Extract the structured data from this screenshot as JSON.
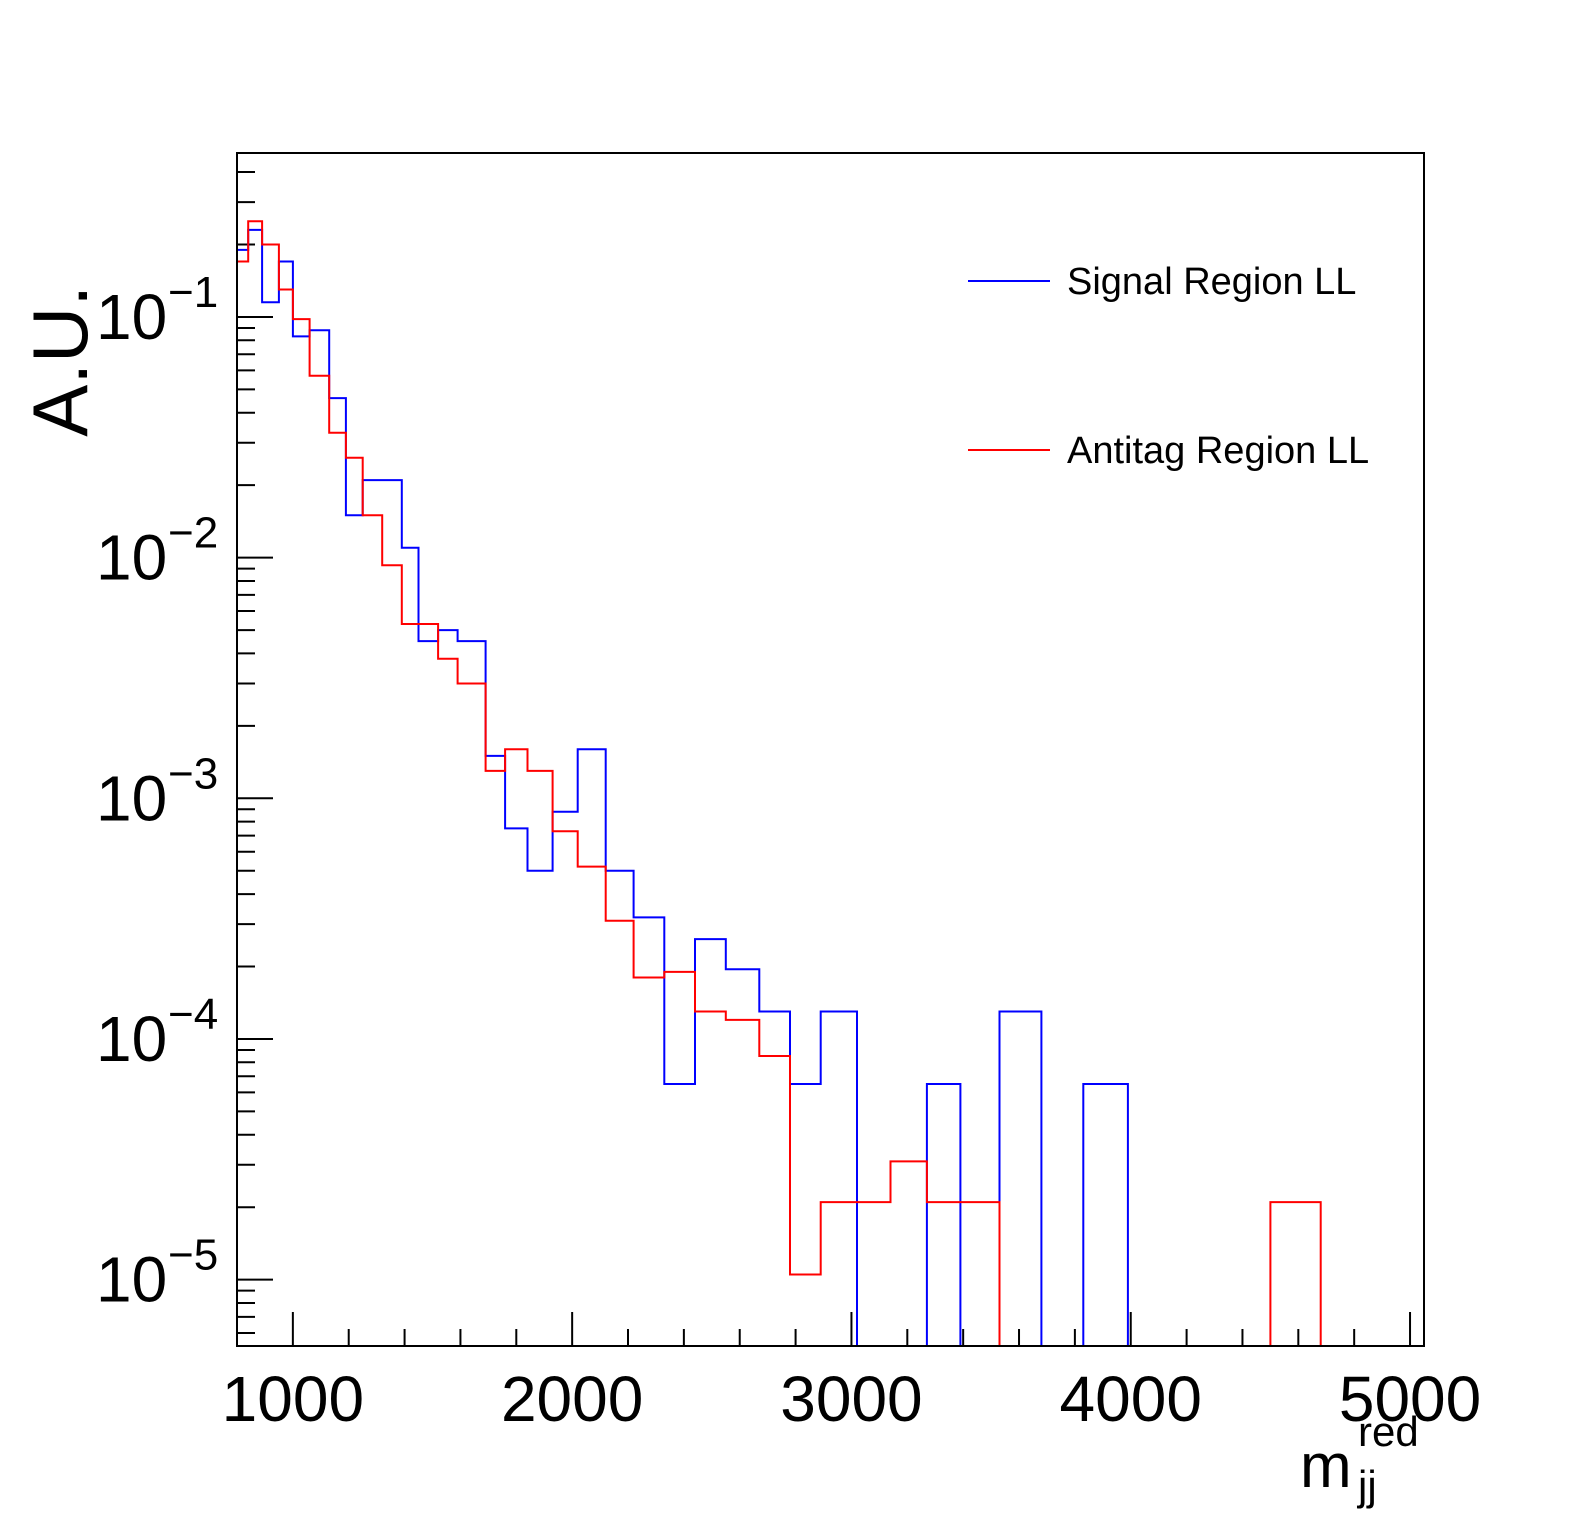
{
  "chart_data": {
    "type": "line",
    "ylabel": "A.U.",
    "xlabel_main": "m",
    "xlabel_sup": "red",
    "xlabel_sub": "jj",
    "xlim": [
      800,
      5050
    ],
    "ylim": [
      5.3e-06,
      0.48
    ],
    "y_scale": "log",
    "x_ticks": [
      1000,
      2000,
      3000,
      4000,
      5000
    ],
    "x_tick_labels": [
      "1000",
      "2000",
      "3000",
      "4000",
      "5000"
    ],
    "y_ticks": [
      -5,
      -4,
      -3,
      -2,
      -1
    ],
    "y_tick_labels": [
      {
        "base": "10",
        "exp": "−5"
      },
      {
        "base": "10",
        "exp": "−4"
      },
      {
        "base": "10",
        "exp": "−3"
      },
      {
        "base": "10",
        "exp": "−2"
      },
      {
        "base": "10",
        "exp": "−1"
      }
    ],
    "grid": false,
    "legend_position": "top-right",
    "series": [
      {
        "name": "Signal Region LL",
        "color": "#0000ff",
        "edges": [
          800,
          840,
          890,
          950,
          1000,
          1060,
          1130,
          1190,
          1250,
          1320,
          1390,
          1450,
          1520,
          1590,
          1690,
          1760,
          1840,
          1930,
          2020,
          2120,
          2220,
          2330,
          2440,
          2550,
          2670,
          2780,
          2890,
          3020,
          3140,
          3270,
          3390,
          3530,
          3680,
          3830,
          3990,
          4150,
          4320,
          4500,
          4680,
          4860,
          5050
        ],
        "values": [
          0.19,
          0.23,
          0.115,
          0.17,
          0.083,
          0.088,
          0.046,
          0.015,
          0.021,
          0.021,
          0.011,
          0.0045,
          0.005,
          0.0045,
          0.0015,
          0.00075,
          0.0005,
          0.00088,
          0.0016,
          0.0005,
          0.00032,
          6.5e-05,
          0.00026,
          0.000195,
          0.00013,
          6.5e-05,
          0.00013,
          0,
          0,
          6.5e-05,
          0,
          0.00013,
          0,
          6.5e-05,
          0,
          0,
          0,
          0,
          0,
          0
        ]
      },
      {
        "name": "Antitag Region LL",
        "color": "#ff0000",
        "edges": [
          800,
          840,
          890,
          950,
          1000,
          1060,
          1130,
          1190,
          1250,
          1320,
          1390,
          1450,
          1520,
          1590,
          1690,
          1760,
          1840,
          1930,
          2020,
          2120,
          2220,
          2330,
          2440,
          2550,
          2670,
          2780,
          2890,
          3020,
          3140,
          3270,
          3390,
          3530,
          3680,
          3830,
          3990,
          4150,
          4320,
          4500,
          4680,
          4860,
          5050
        ],
        "values": [
          0.17,
          0.25,
          0.2,
          0.13,
          0.098,
          0.057,
          0.033,
          0.026,
          0.015,
          0.0093,
          0.0053,
          0.0053,
          0.0038,
          0.003,
          0.0013,
          0.0016,
          0.0013,
          0.00073,
          0.00052,
          0.00031,
          0.00018,
          0.00019,
          0.00013,
          0.00012,
          8.5e-05,
          1.05e-05,
          2.1e-05,
          2.1e-05,
          3.1e-05,
          2.1e-05,
          2.1e-05,
          0,
          0,
          0,
          0,
          0,
          0,
          2.1e-05,
          0,
          0
        ]
      }
    ]
  }
}
